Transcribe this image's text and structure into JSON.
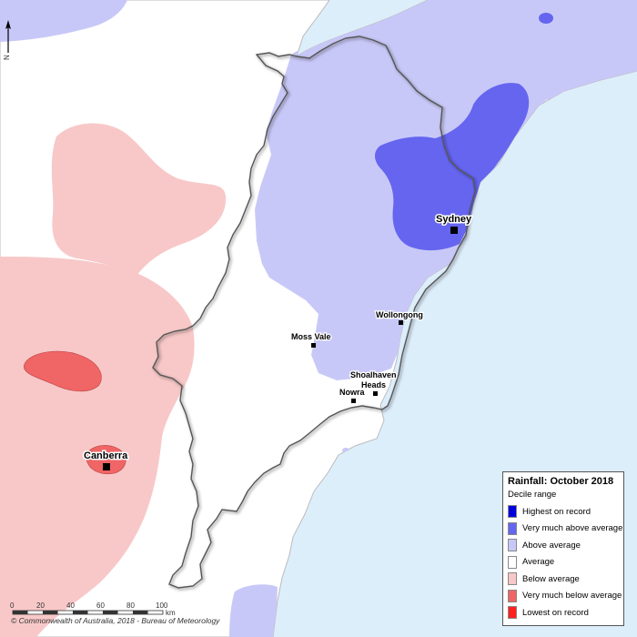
{
  "map": {
    "north_label": "N",
    "colors": {
      "ocean": "#ddeefb",
      "average": "#ffffff",
      "above_average": "#c8c8f8",
      "very_much_above": "#6565f0",
      "below_average": "#f8c8c8",
      "very_much_below": "#f06565",
      "coast_line": "#bbbbbb"
    },
    "places": [
      {
        "name": "Sydney",
        "type": "city"
      },
      {
        "name": "Wollongong",
        "type": "town"
      },
      {
        "name": "Moss Vale",
        "type": "town"
      },
      {
        "name": "Shoalhaven",
        "type": "town"
      },
      {
        "name": "Heads",
        "type": "town"
      },
      {
        "name": "Nowra",
        "type": "town"
      },
      {
        "name": "Canberra",
        "type": "city"
      }
    ]
  },
  "legend": {
    "title": "Rainfall: October 2018",
    "subtitle": "Decile range",
    "items": [
      {
        "label": "Highest on record",
        "color": "#0000dd"
      },
      {
        "label": "Very much above average",
        "color": "#6565f0"
      },
      {
        "label": "Above average",
        "color": "#c8c8f8"
      },
      {
        "label": "Average",
        "color": "#ffffff"
      },
      {
        "label": "Below average",
        "color": "#f8c8c8"
      },
      {
        "label": "Very much below average",
        "color": "#f06565"
      },
      {
        "label": "Lowest on record",
        "color": "#ff2020"
      }
    ]
  },
  "scale_bar": {
    "ticks": [
      "0",
      "20",
      "40",
      "60",
      "80",
      "100"
    ],
    "unit": "km"
  },
  "copyright": "© Commonwealth of Australia, 2018 - Bureau of Meteorology"
}
